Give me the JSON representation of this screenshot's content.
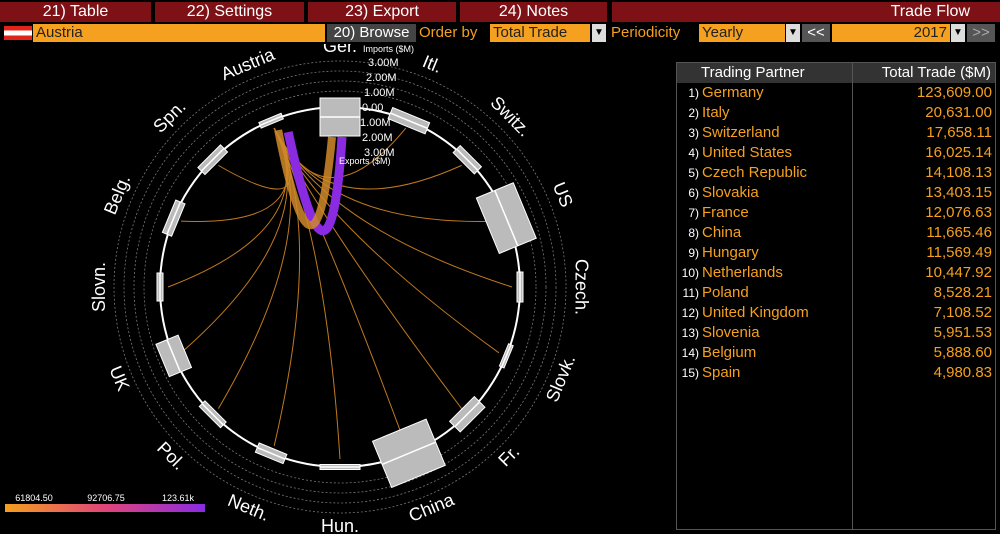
{
  "toolbar": {
    "buttons": [
      "21) Table",
      "22) Settings",
      "23) Export",
      "24) Notes"
    ],
    "title": "Trade Flow"
  },
  "controls": {
    "country": "Austria",
    "browse": "20) Browse",
    "order_label": "Order by",
    "order_value": "Total Trade",
    "periodicity_label": "Periodicity",
    "periodicity_value": "Yearly",
    "prev": "<<",
    "year": "2017",
    "next": ">>"
  },
  "diagram": {
    "partners": [
      "Ger.",
      "Itl.",
      "Switz.",
      "US",
      "Czech.",
      "Slovk.",
      "Fr.",
      "China",
      "Hun.",
      "Neth.",
      "Pol.",
      "UK",
      "Slovn.",
      "Belg.",
      "Spn.",
      "Austria"
    ],
    "scale": {
      "imports_label": "Imports ($M)",
      "ticks": [
        "3.00M",
        "2.00M",
        "1.00M",
        "0.00",
        "1.00M",
        "2.00M",
        "3.00M"
      ],
      "exports_label": "Exports ($M)"
    },
    "legend": [
      "61804.50",
      "92706.75",
      "123.61k"
    ]
  },
  "table": {
    "headers": [
      "Trading Partner",
      "Total Trade ($M)"
    ],
    "rows": [
      [
        "1)",
        "Germany",
        "123,609.00"
      ],
      [
        "2)",
        "Italy",
        "20,631.00"
      ],
      [
        "3)",
        "Switzerland",
        "17,658.11"
      ],
      [
        "4)",
        "United States",
        "16,025.14"
      ],
      [
        "5)",
        "Czech Republic",
        "14,108.13"
      ],
      [
        "6)",
        "Slovakia",
        "13,403.15"
      ],
      [
        "7)",
        "France",
        "12,076.63"
      ],
      [
        "8)",
        "China",
        "11,665.46"
      ],
      [
        "9)",
        "Hungary",
        "11,569.49"
      ],
      [
        "10)",
        "Netherlands",
        "10,447.92"
      ],
      [
        "11)",
        "Poland",
        "8,528.21"
      ],
      [
        "12)",
        "United Kingdom",
        "7,108.52"
      ],
      [
        "13)",
        "Slovenia",
        "5,951.53"
      ],
      [
        "14)",
        "Belgium",
        "5,888.60"
      ],
      [
        "15)",
        "Spain",
        "4,980.83"
      ]
    ]
  }
}
